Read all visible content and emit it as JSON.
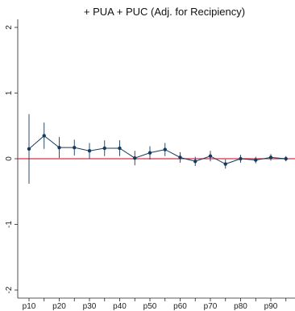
{
  "chart_data": {
    "type": "line",
    "title": "+ PUA + PUC (Adj. for Recipiency)",
    "xlabel": "",
    "ylabel": "",
    "x_ticks": [
      "p10",
      "p20",
      "p30",
      "p40",
      "p50",
      "p60",
      "p70",
      "p80",
      "p90"
    ],
    "y_ticks": [
      "2",
      "1",
      "0",
      "-1",
      "-2"
    ],
    "ylim": [
      -2.05,
      2.05
    ],
    "grid": false,
    "reference_line": {
      "y": 0,
      "color": "#d6304a"
    },
    "series_color": "#163a5c",
    "points": [
      {
        "p": 10,
        "y": 0.15,
        "lo": -0.38,
        "hi": 0.68
      },
      {
        "p": 15,
        "y": 0.35,
        "lo": 0.15,
        "hi": 0.55
      },
      {
        "p": 20,
        "y": 0.17,
        "lo": 0.01,
        "hi": 0.33
      },
      {
        "p": 25,
        "y": 0.17,
        "lo": 0.05,
        "hi": 0.29
      },
      {
        "p": 30,
        "y": 0.12,
        "lo": 0.0,
        "hi": 0.24
      },
      {
        "p": 35,
        "y": 0.16,
        "lo": 0.04,
        "hi": 0.28
      },
      {
        "p": 40,
        "y": 0.16,
        "lo": 0.04,
        "hi": 0.28
      },
      {
        "p": 45,
        "y": 0.01,
        "lo": -0.1,
        "hi": 0.12
      },
      {
        "p": 50,
        "y": 0.09,
        "lo": -0.01,
        "hi": 0.19
      },
      {
        "p": 55,
        "y": 0.14,
        "lo": 0.04,
        "hi": 0.24
      },
      {
        "p": 60,
        "y": 0.02,
        "lo": -0.06,
        "hi": 0.1
      },
      {
        "p": 65,
        "y": -0.04,
        "lo": -0.11,
        "hi": 0.03
      },
      {
        "p": 70,
        "y": 0.04,
        "lo": -0.04,
        "hi": 0.12
      },
      {
        "p": 75,
        "y": -0.08,
        "lo": -0.15,
        "hi": -0.01
      },
      {
        "p": 80,
        "y": 0.0,
        "lo": -0.06,
        "hi": 0.06
      },
      {
        "p": 85,
        "y": -0.02,
        "lo": -0.07,
        "hi": 0.03
      },
      {
        "p": 90,
        "y": 0.02,
        "lo": -0.03,
        "hi": 0.07
      },
      {
        "p": 95,
        "y": 0.0,
        "lo": -0.04,
        "hi": 0.04
      }
    ]
  }
}
